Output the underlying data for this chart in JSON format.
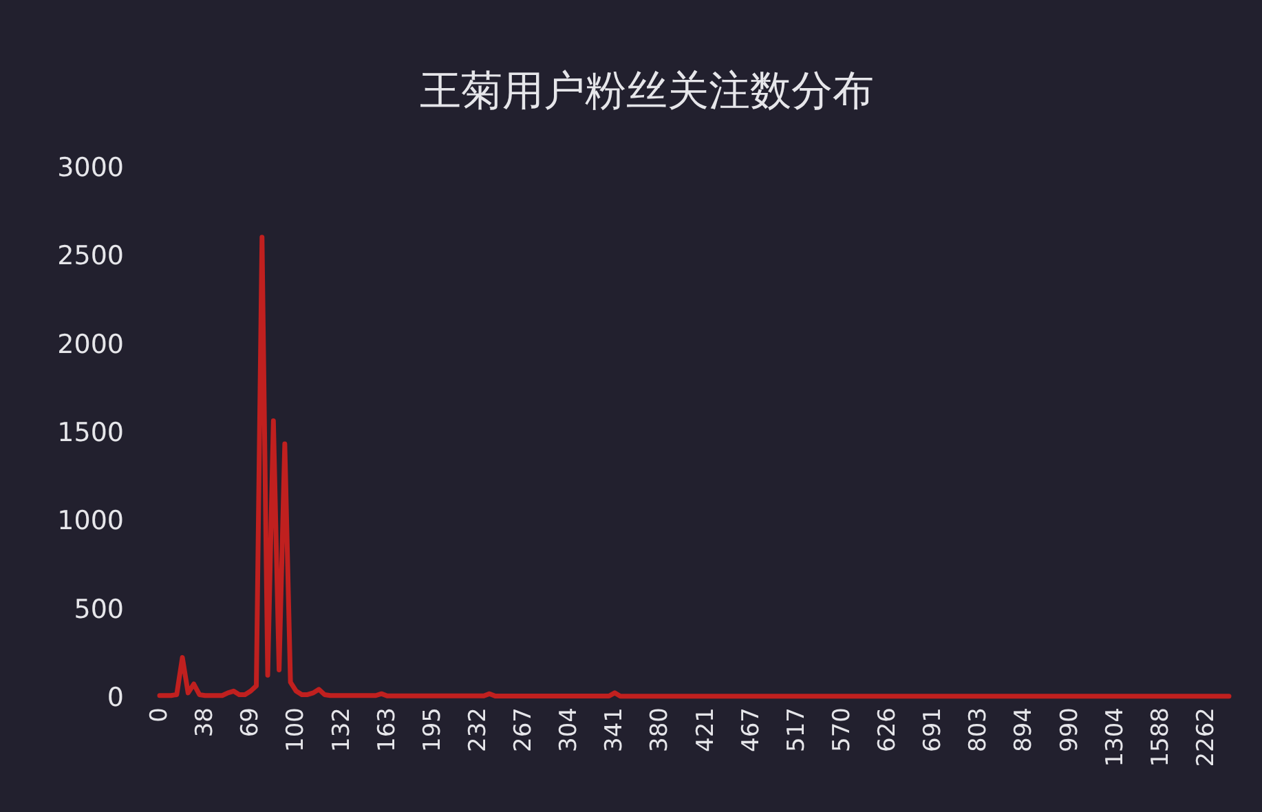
{
  "chart_data": {
    "type": "line",
    "title": "王菊用户粉丝关注数分布",
    "categories": [
      "0",
      null,
      null,
      null,
      null,
      null,
      null,
      null,
      "38",
      null,
      null,
      null,
      null,
      null,
      null,
      null,
      "69",
      null,
      null,
      null,
      null,
      null,
      null,
      null,
      "100",
      null,
      null,
      null,
      null,
      null,
      null,
      null,
      "132",
      null,
      null,
      null,
      null,
      null,
      null,
      null,
      "163",
      null,
      null,
      null,
      null,
      null,
      null,
      null,
      "195",
      null,
      null,
      null,
      null,
      null,
      null,
      null,
      "232",
      null,
      null,
      null,
      null,
      null,
      null,
      null,
      "267",
      null,
      null,
      null,
      null,
      null,
      null,
      null,
      "304",
      null,
      null,
      null,
      null,
      null,
      null,
      null,
      "341",
      null,
      null,
      null,
      null,
      null,
      null,
      null,
      "380",
      null,
      null,
      null,
      null,
      null,
      null,
      null,
      "421",
      null,
      null,
      null,
      null,
      null,
      null,
      null,
      "467",
      null,
      null,
      null,
      null,
      null,
      null,
      null,
      "517",
      null,
      null,
      null,
      null,
      null,
      null,
      null,
      "570",
      null,
      null,
      null,
      null,
      null,
      null,
      null,
      "626",
      null,
      null,
      null,
      null,
      null,
      null,
      null,
      "691",
      null,
      null,
      null,
      null,
      null,
      null,
      null,
      "803",
      null,
      null,
      null,
      null,
      null,
      null,
      null,
      "894",
      null,
      null,
      null,
      null,
      null,
      null,
      null,
      "990",
      null,
      null,
      null,
      null,
      null,
      null,
      null,
      "1304",
      null,
      null,
      null,
      null,
      null,
      null,
      null,
      "1588",
      null,
      null,
      null,
      null,
      null,
      null,
      null,
      "2262",
      null,
      null,
      null,
      null
    ],
    "values": [
      5,
      5,
      5,
      10,
      220,
      20,
      70,
      10,
      5,
      5,
      5,
      5,
      20,
      30,
      10,
      10,
      30,
      60,
      2600,
      120,
      1560,
      150,
      1430,
      80,
      30,
      10,
      10,
      20,
      40,
      10,
      5,
      5,
      5,
      5,
      5,
      5,
      5,
      5,
      5,
      15,
      3,
      3,
      3,
      3,
      3,
      3,
      3,
      3,
      3,
      3,
      3,
      3,
      3,
      3,
      3,
      3,
      3,
      3,
      15,
      2,
      2,
      2,
      2,
      2,
      2,
      2,
      2,
      2,
      2,
      2,
      2,
      2,
      2,
      2,
      2,
      2,
      2,
      2,
      2,
      2,
      20,
      1,
      1,
      1,
      1,
      1,
      1,
      1,
      1,
      1,
      1,
      1,
      1,
      1,
      1,
      1,
      1,
      1,
      1,
      1,
      1,
      1,
      1,
      1,
      1,
      1,
      1,
      1,
      1,
      1,
      1,
      1,
      1,
      1,
      1,
      1,
      1,
      1,
      1,
      1,
      1,
      1,
      1,
      1,
      1,
      1,
      1,
      1,
      1,
      1,
      1,
      1,
      1,
      1,
      1,
      1,
      1,
      1,
      1,
      1,
      1,
      1,
      1,
      1,
      1,
      1,
      1,
      1,
      1,
      1,
      1,
      1,
      1,
      1,
      1,
      1,
      1,
      1,
      1,
      1,
      1,
      1,
      1,
      1,
      1,
      1,
      1,
      1,
      1,
      1,
      1,
      1,
      1,
      1,
      1,
      1,
      1,
      1,
      1,
      1,
      1,
      1,
      1,
      1,
      1,
      1,
      1,
      1,
      1
    ],
    "color": "#c0201f",
    "ylim": [
      0,
      3000
    ],
    "yticks": [
      0,
      500,
      1000,
      1500,
      2000,
      2500,
      3000
    ]
  }
}
